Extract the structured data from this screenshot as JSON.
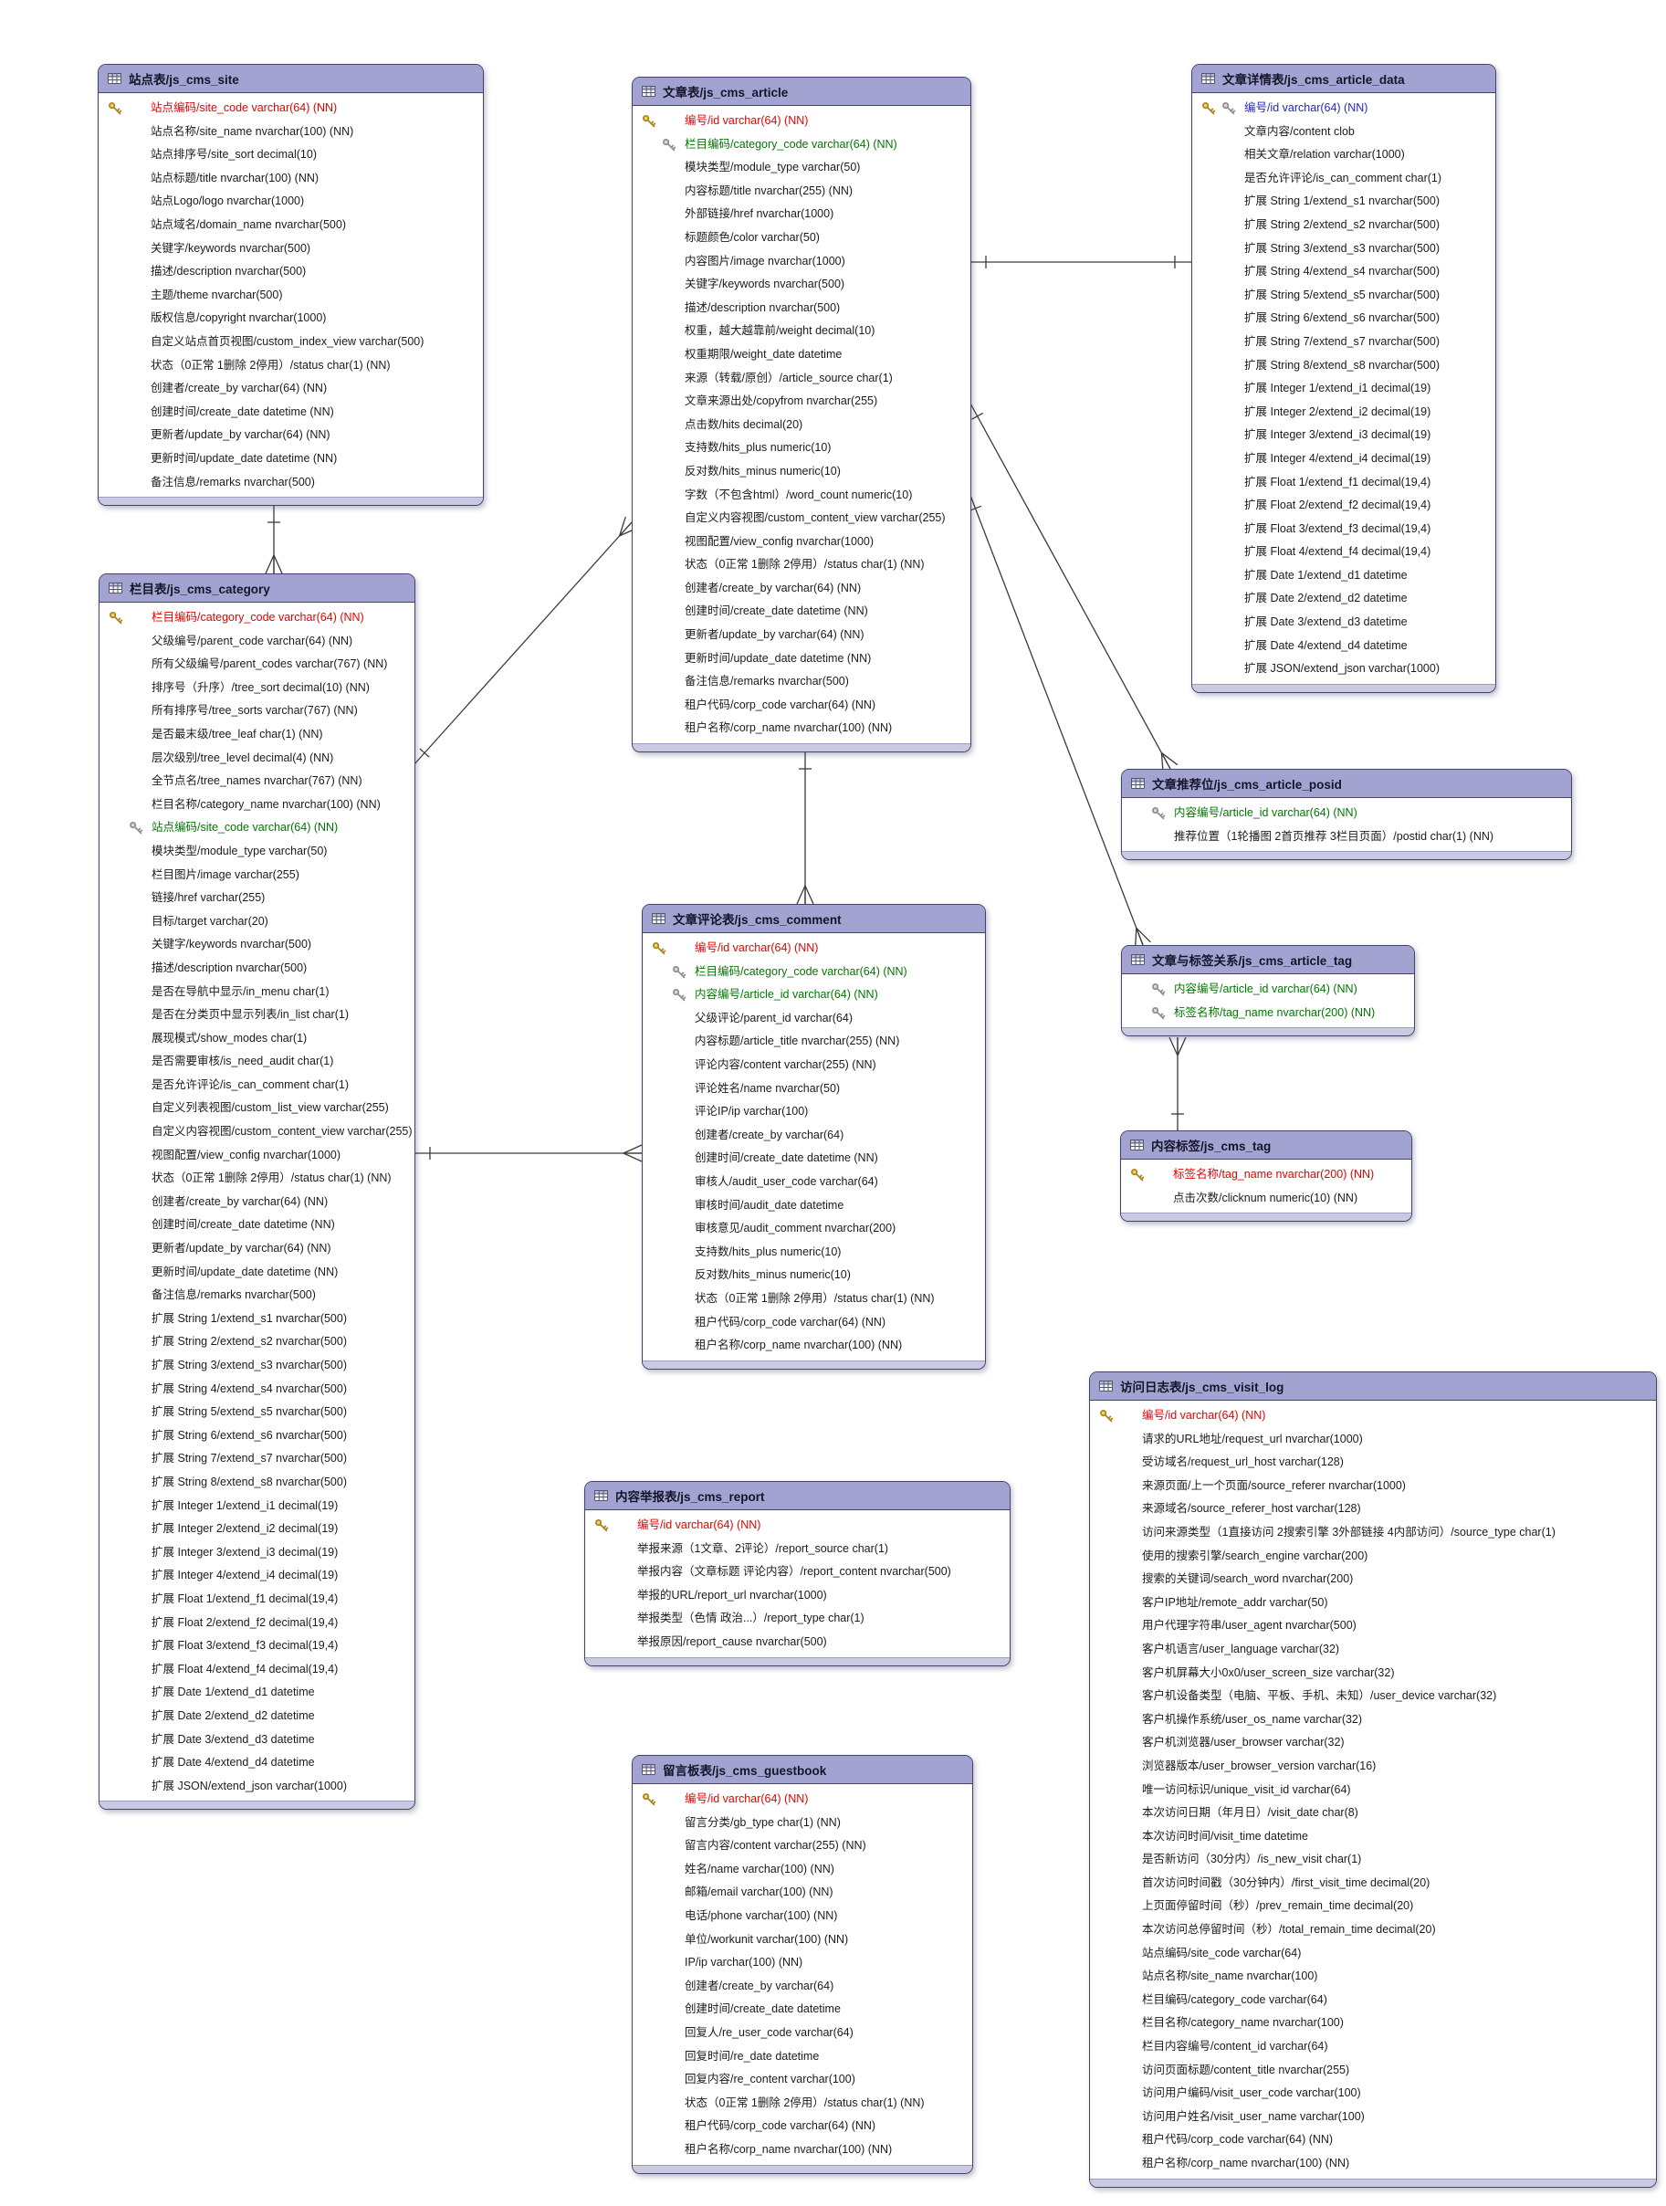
{
  "colors": {
    "header_fill": "#a3a3d1",
    "pk_color": "#e60000",
    "fk_color": "#007700",
    "pkfk_color": "#2323cc",
    "line_color": "#3a3a3a",
    "gold_key": "#ab861e",
    "silver_key": "#8f8f8f"
  },
  "tables": [
    {
      "id": "js_cms_site",
      "title": "站点表/js_cms_site",
      "fields": [
        {
          "label": "站点编码/site_code varchar(64) (NN)",
          "key": "pk"
        },
        {
          "label": "站点名称/site_name nvarchar(100) (NN)"
        },
        {
          "label": "站点排序号/site_sort decimal(10)"
        },
        {
          "label": "站点标题/title nvarchar(100) (NN)"
        },
        {
          "label": "站点Logo/logo nvarchar(1000)"
        },
        {
          "label": "站点域名/domain_name nvarchar(500)"
        },
        {
          "label": "关键字/keywords nvarchar(500)"
        },
        {
          "label": "描述/description nvarchar(500)"
        },
        {
          "label": "主题/theme nvarchar(500)"
        },
        {
          "label": "版权信息/copyright nvarchar(1000)"
        },
        {
          "label": "自定义站点首页视图/custom_index_view varchar(500)"
        },
        {
          "label": "状态（0正常 1删除 2停用）/status char(1) (NN)"
        },
        {
          "label": "创建者/create_by varchar(64) (NN)"
        },
        {
          "label": "创建时间/create_date datetime (NN)"
        },
        {
          "label": "更新者/update_by varchar(64) (NN)"
        },
        {
          "label": "更新时间/update_date datetime (NN)"
        },
        {
          "label": "备注信息/remarks nvarchar(500)"
        }
      ]
    },
    {
      "id": "js_cms_article",
      "title": "文章表/js_cms_article",
      "fields": [
        {
          "label": "编号/id varchar(64) (NN)",
          "key": "pk"
        },
        {
          "label": "栏目编码/category_code varchar(64) (NN)",
          "key": "fk"
        },
        {
          "label": "模块类型/module_type varchar(50)"
        },
        {
          "label": "内容标题/title nvarchar(255) (NN)"
        },
        {
          "label": "外部链接/href nvarchar(1000)"
        },
        {
          "label": "标题颜色/color varchar(50)"
        },
        {
          "label": "内容图片/image nvarchar(1000)"
        },
        {
          "label": "关键字/keywords nvarchar(500)"
        },
        {
          "label": "描述/description nvarchar(500)"
        },
        {
          "label": "权重，越大越靠前/weight decimal(10)"
        },
        {
          "label": "权重期限/weight_date datetime"
        },
        {
          "label": "来源（转载/原创）/article_source char(1)"
        },
        {
          "label": "文章来源出处/copyfrom nvarchar(255)"
        },
        {
          "label": "点击数/hits decimal(20)"
        },
        {
          "label": "支持数/hits_plus numeric(10)"
        },
        {
          "label": "反对数/hits_minus numeric(10)"
        },
        {
          "label": "字数（不包含html）/word_count numeric(10)"
        },
        {
          "label": "自定义内容视图/custom_content_view varchar(255)"
        },
        {
          "label": "视图配置/view_config nvarchar(1000)"
        },
        {
          "label": "状态（0正常 1删除 2停用）/status char(1) (NN)"
        },
        {
          "label": "创建者/create_by varchar(64) (NN)"
        },
        {
          "label": "创建时间/create_date datetime (NN)"
        },
        {
          "label": "更新者/update_by varchar(64) (NN)"
        },
        {
          "label": "更新时间/update_date datetime (NN)"
        },
        {
          "label": "备注信息/remarks nvarchar(500)"
        },
        {
          "label": "租户代码/corp_code varchar(64) (NN)"
        },
        {
          "label": "租户名称/corp_name nvarchar(100) (NN)"
        }
      ]
    },
    {
      "id": "js_cms_article_data",
      "title": "文章详情表/js_cms_article_data",
      "fields": [
        {
          "label": "编号/id varchar(64) (NN)",
          "key": "pkfk"
        },
        {
          "label": "文章内容/content clob"
        },
        {
          "label": "相关文章/relation varchar(1000)"
        },
        {
          "label": "是否允许评论/is_can_comment char(1)"
        },
        {
          "label": "扩展 String 1/extend_s1 nvarchar(500)"
        },
        {
          "label": "扩展 String 2/extend_s2 nvarchar(500)"
        },
        {
          "label": "扩展 String 3/extend_s3 nvarchar(500)"
        },
        {
          "label": "扩展 String 4/extend_s4 nvarchar(500)"
        },
        {
          "label": "扩展 String 5/extend_s5 nvarchar(500)"
        },
        {
          "label": "扩展 String 6/extend_s6 nvarchar(500)"
        },
        {
          "label": "扩展 String 7/extend_s7 nvarchar(500)"
        },
        {
          "label": "扩展 String 8/extend_s8 nvarchar(500)"
        },
        {
          "label": "扩展 Integer 1/extend_i1 decimal(19)"
        },
        {
          "label": "扩展 Integer 2/extend_i2 decimal(19)"
        },
        {
          "label": "扩展 Integer 3/extend_i3 decimal(19)"
        },
        {
          "label": "扩展 Integer 4/extend_i4 decimal(19)"
        },
        {
          "label": "扩展 Float 1/extend_f1 decimal(19,4)"
        },
        {
          "label": "扩展 Float 2/extend_f2 decimal(19,4)"
        },
        {
          "label": "扩展 Float 3/extend_f3 decimal(19,4)"
        },
        {
          "label": "扩展 Float 4/extend_f4 decimal(19,4)"
        },
        {
          "label": "扩展 Date 1/extend_d1 datetime"
        },
        {
          "label": "扩展 Date 2/extend_d2 datetime"
        },
        {
          "label": "扩展 Date 3/extend_d3 datetime"
        },
        {
          "label": "扩展 Date 4/extend_d4 datetime"
        },
        {
          "label": "扩展 JSON/extend_json varchar(1000)"
        }
      ]
    },
    {
      "id": "js_cms_category",
      "title": "栏目表/js_cms_category",
      "fields": [
        {
          "label": "栏目编码/category_code varchar(64) (NN)",
          "key": "pk"
        },
        {
          "label": "父级编号/parent_code varchar(64) (NN)"
        },
        {
          "label": "所有父级编号/parent_codes varchar(767) (NN)"
        },
        {
          "label": "排序号（升序）/tree_sort decimal(10) (NN)"
        },
        {
          "label": "所有排序号/tree_sorts varchar(767) (NN)"
        },
        {
          "label": "是否最末级/tree_leaf char(1) (NN)"
        },
        {
          "label": "层次级别/tree_level decimal(4) (NN)"
        },
        {
          "label": "全节点名/tree_names nvarchar(767) (NN)"
        },
        {
          "label": "栏目名称/category_name nvarchar(100) (NN)"
        },
        {
          "label": "站点编码/site_code varchar(64) (NN)",
          "key": "fk"
        },
        {
          "label": "模块类型/module_type varchar(50)"
        },
        {
          "label": "栏目图片/image varchar(255)"
        },
        {
          "label": "链接/href varchar(255)"
        },
        {
          "label": "目标/target varchar(20)"
        },
        {
          "label": "关键字/keywords nvarchar(500)"
        },
        {
          "label": "描述/description nvarchar(500)"
        },
        {
          "label": "是否在导航中显示/in_menu char(1)"
        },
        {
          "label": "是否在分类页中显示列表/in_list char(1)"
        },
        {
          "label": "展现模式/show_modes char(1)"
        },
        {
          "label": "是否需要审核/is_need_audit char(1)"
        },
        {
          "label": "是否允许评论/is_can_comment char(1)"
        },
        {
          "label": "自定义列表视图/custom_list_view varchar(255)"
        },
        {
          "label": "自定义内容视图/custom_content_view varchar(255)"
        },
        {
          "label": "视图配置/view_config nvarchar(1000)"
        },
        {
          "label": "状态（0正常 1删除 2停用）/status char(1) (NN)"
        },
        {
          "label": "创建者/create_by varchar(64) (NN)"
        },
        {
          "label": "创建时间/create_date datetime (NN)"
        },
        {
          "label": "更新者/update_by varchar(64) (NN)"
        },
        {
          "label": "更新时间/update_date datetime (NN)"
        },
        {
          "label": "备注信息/remarks nvarchar(500)"
        },
        {
          "label": "扩展 String 1/extend_s1 nvarchar(500)"
        },
        {
          "label": "扩展 String 2/extend_s2 nvarchar(500)"
        },
        {
          "label": "扩展 String 3/extend_s3 nvarchar(500)"
        },
        {
          "label": "扩展 String 4/extend_s4 nvarchar(500)"
        },
        {
          "label": "扩展 String 5/extend_s5 nvarchar(500)"
        },
        {
          "label": "扩展 String 6/extend_s6 nvarchar(500)"
        },
        {
          "label": "扩展 String 7/extend_s7 nvarchar(500)"
        },
        {
          "label": "扩展 String 8/extend_s8 nvarchar(500)"
        },
        {
          "label": "扩展 Integer 1/extend_i1 decimal(19)"
        },
        {
          "label": "扩展 Integer 2/extend_i2 decimal(19)"
        },
        {
          "label": "扩展 Integer 3/extend_i3 decimal(19)"
        },
        {
          "label": "扩展 Integer 4/extend_i4 decimal(19)"
        },
        {
          "label": "扩展 Float 1/extend_f1 decimal(19,4)"
        },
        {
          "label": "扩展 Float 2/extend_f2 decimal(19,4)"
        },
        {
          "label": "扩展 Float 3/extend_f3 decimal(19,4)"
        },
        {
          "label": "扩展 Float 4/extend_f4 decimal(19,4)"
        },
        {
          "label": "扩展 Date 1/extend_d1 datetime"
        },
        {
          "label": "扩展 Date 2/extend_d2 datetime"
        },
        {
          "label": "扩展 Date 3/extend_d3 datetime"
        },
        {
          "label": "扩展 Date 4/extend_d4 datetime"
        },
        {
          "label": "扩展 JSON/extend_json varchar(1000)"
        }
      ]
    },
    {
      "id": "js_cms_article_posid",
      "title": "文章推荐位/js_cms_article_posid",
      "fields": [
        {
          "label": "内容编号/article_id varchar(64) (NN)",
          "key": "fk"
        },
        {
          "label": "推荐位置（1轮播图 2首页推荐 3栏目页面）/postid char(1) (NN)"
        }
      ]
    },
    {
      "id": "js_cms_comment",
      "title": "文章评论表/js_cms_comment",
      "fields": [
        {
          "label": "编号/id varchar(64) (NN)",
          "key": "pk"
        },
        {
          "label": "栏目编码/category_code varchar(64) (NN)",
          "key": "fk"
        },
        {
          "label": "内容编号/article_id varchar(64) (NN)",
          "key": "fk"
        },
        {
          "label": "父级评论/parent_id varchar(64)"
        },
        {
          "label": "内容标题/article_title nvarchar(255) (NN)"
        },
        {
          "label": "评论内容/content varchar(255) (NN)"
        },
        {
          "label": "评论姓名/name nvarchar(50)"
        },
        {
          "label": "评论IP/ip varchar(100)"
        },
        {
          "label": "创建者/create_by varchar(64)"
        },
        {
          "label": "创建时间/create_date datetime (NN)"
        },
        {
          "label": "审核人/audit_user_code varchar(64)"
        },
        {
          "label": "审核时间/audit_date datetime"
        },
        {
          "label": "审核意见/audit_comment nvarchar(200)"
        },
        {
          "label": "支持数/hits_plus numeric(10)"
        },
        {
          "label": "反对数/hits_minus numeric(10)"
        },
        {
          "label": "状态（0正常 1删除 2停用）/status char(1) (NN)"
        },
        {
          "label": "租户代码/corp_code varchar(64) (NN)"
        },
        {
          "label": "租户名称/corp_name nvarchar(100) (NN)"
        }
      ]
    },
    {
      "id": "js_cms_article_tag",
      "title": "文章与标签关系/js_cms_article_tag",
      "fields": [
        {
          "label": "内容编号/article_id varchar(64) (NN)",
          "key": "fk"
        },
        {
          "label": "标签名称/tag_name nvarchar(200) (NN)",
          "key": "fk"
        }
      ]
    },
    {
      "id": "js_cms_tag",
      "title": "内容标签/js_cms_tag",
      "fields": [
        {
          "label": "标签名称/tag_name nvarchar(200) (NN)",
          "key": "pk"
        },
        {
          "label": "点击次数/clicknum numeric(10) (NN)"
        }
      ]
    },
    {
      "id": "js_cms_report",
      "title": "内容举报表/js_cms_report",
      "fields": [
        {
          "label": "编号/id varchar(64) (NN)",
          "key": "pk"
        },
        {
          "label": "举报来源（1文章、2评论）/report_source char(1)"
        },
        {
          "label": "举报内容（文章标题 评论内容）/report_content nvarchar(500)"
        },
        {
          "label": "举报的URL/report_url nvarchar(1000)"
        },
        {
          "label": "举报类型（色情 政治...）/report_type char(1)"
        },
        {
          "label": "举报原因/report_cause nvarchar(500)"
        }
      ]
    },
    {
      "id": "js_cms_guestbook",
      "title": "留言板表/js_cms_guestbook",
      "fields": [
        {
          "label": "编号/id varchar(64) (NN)",
          "key": "pk"
        },
        {
          "label": "留言分类/gb_type char(1) (NN)"
        },
        {
          "label": "留言内容/content varchar(255) (NN)"
        },
        {
          "label": "姓名/name varchar(100) (NN)"
        },
        {
          "label": "邮箱/email varchar(100) (NN)"
        },
        {
          "label": "电话/phone varchar(100) (NN)"
        },
        {
          "label": "单位/workunit varchar(100) (NN)"
        },
        {
          "label": "IP/ip varchar(100) (NN)"
        },
        {
          "label": "创建者/create_by varchar(64)"
        },
        {
          "label": "创建时间/create_date datetime"
        },
        {
          "label": "回复人/re_user_code varchar(64)"
        },
        {
          "label": "回复时间/re_date datetime"
        },
        {
          "label": "回复内容/re_content varchar(100)"
        },
        {
          "label": "状态（0正常 1删除 2停用）/status char(1) (NN)"
        },
        {
          "label": "租户代码/corp_code varchar(64) (NN)"
        },
        {
          "label": "租户名称/corp_name nvarchar(100) (NN)"
        }
      ]
    },
    {
      "id": "js_cms_visit_log",
      "title": "访问日志表/js_cms_visit_log",
      "fields": [
        {
          "label": "编号/id varchar(64) (NN)",
          "key": "pk"
        },
        {
          "label": "请求的URL地址/request_url nvarchar(1000)"
        },
        {
          "label": "受访域名/request_url_host varchar(128)"
        },
        {
          "label": "来源页面/上一个页面/source_referer nvarchar(1000)"
        },
        {
          "label": "来源域名/source_referer_host varchar(128)"
        },
        {
          "label": "访问来源类型（1直接访问 2搜索引擎 3外部链接 4内部访问）/source_type char(1)"
        },
        {
          "label": "使用的搜索引擎/search_engine varchar(200)"
        },
        {
          "label": "搜索的关键词/search_word nvarchar(200)"
        },
        {
          "label": "客户IP地址/remote_addr varchar(50)"
        },
        {
          "label": "用户代理字符串/user_agent nvarchar(500)"
        },
        {
          "label": "客户机语言/user_language varchar(32)"
        },
        {
          "label": "客户机屏幕大小0x0/user_screen_size varchar(32)"
        },
        {
          "label": "客户机设备类型（电脑、平板、手机、未知）/user_device varchar(32)"
        },
        {
          "label": "客户机操作系统/user_os_name varchar(32)"
        },
        {
          "label": "客户机浏览器/user_browser varchar(32)"
        },
        {
          "label": "浏览器版本/user_browser_version varchar(16)"
        },
        {
          "label": "唯一访问标识/unique_visit_id varchar(64)"
        },
        {
          "label": "本次访问日期（年月日）/visit_date char(8)"
        },
        {
          "label": "本次访问时间/visit_time datetime"
        },
        {
          "label": "是否新访问（30分内）/is_new_visit char(1)"
        },
        {
          "label": "首次访问时间戳（30分钟内）/first_visit_time decimal(20)"
        },
        {
          "label": "上页面停留时间（秒）/prev_remain_time decimal(20)"
        },
        {
          "label": "本次访问总停留时间（秒）/total_remain_time decimal(20)"
        },
        {
          "label": "站点编码/site_code varchar(64)"
        },
        {
          "label": "站点名称/site_name nvarchar(100)"
        },
        {
          "label": "栏目编码/category_code varchar(64)"
        },
        {
          "label": "栏目名称/category_name nvarchar(100)"
        },
        {
          "label": "栏目内容编号/content_id varchar(64)"
        },
        {
          "label": "访问页面标题/content_title nvarchar(255)"
        },
        {
          "label": "访问用户编码/visit_user_code varchar(100)"
        },
        {
          "label": "访问用户姓名/visit_user_name varchar(100)"
        },
        {
          "label": "租户代码/corp_code varchar(64) (NN)"
        },
        {
          "label": "租户名称/corp_name nvarchar(100) (NN)"
        }
      ]
    }
  ],
  "relations": [
    {
      "from": "js_cms_site",
      "to": "js_cms_category",
      "cardinality": "one-to-many"
    },
    {
      "from": "js_cms_article",
      "to": "js_cms_article_data",
      "cardinality": "one-to-one"
    },
    {
      "from": "js_cms_category",
      "to": "js_cms_article",
      "cardinality": "one-to-many"
    },
    {
      "from": "js_cms_category",
      "to": "js_cms_comment",
      "cardinality": "one-to-many"
    },
    {
      "from": "js_cms_article",
      "to": "js_cms_comment",
      "cardinality": "one-to-many"
    },
    {
      "from": "js_cms_article",
      "to": "js_cms_article_posid",
      "cardinality": "one-to-many"
    },
    {
      "from": "js_cms_article",
      "to": "js_cms_article_tag",
      "cardinality": "one-to-many"
    },
    {
      "from": "js_cms_tag",
      "to": "js_cms_article_tag",
      "cardinality": "one-to-many"
    }
  ]
}
